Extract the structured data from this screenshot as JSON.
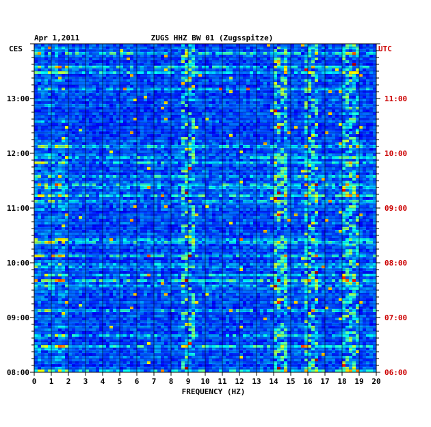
{
  "chart_data": {
    "type": "heatmap",
    "date": "Apr 1,2011",
    "title": "ZUGS HHZ BW 01 (Zugsspitze)",
    "xlabel": "FREQUENCY (HZ)",
    "x_ticks": [
      "0",
      "1",
      "2",
      "3",
      "4",
      "5",
      "6",
      "7",
      "8",
      "9",
      "10",
      "11",
      "12",
      "13",
      "14",
      "15",
      "16",
      "17",
      "18",
      "19",
      "20"
    ],
    "xlim": [
      0,
      20
    ],
    "left_axis_label": "CES",
    "left_ticks": [
      "08:00",
      "09:00",
      "10:00",
      "11:00",
      "12:00",
      "13:00"
    ],
    "right_axis_label": "UTC",
    "right_ticks": [
      "06:00",
      "07:00",
      "08:00",
      "09:00",
      "10:00",
      "11:00"
    ],
    "time_range_utc": [
      "06:00",
      "12:00"
    ],
    "colormap": "jet",
    "dominant_features_hz": [
      9,
      14.3,
      16.1,
      18.5
    ],
    "colors": {
      "left_axis": "#000000",
      "right_axis": "#cc0000",
      "background_level": "#0000a8"
    }
  }
}
